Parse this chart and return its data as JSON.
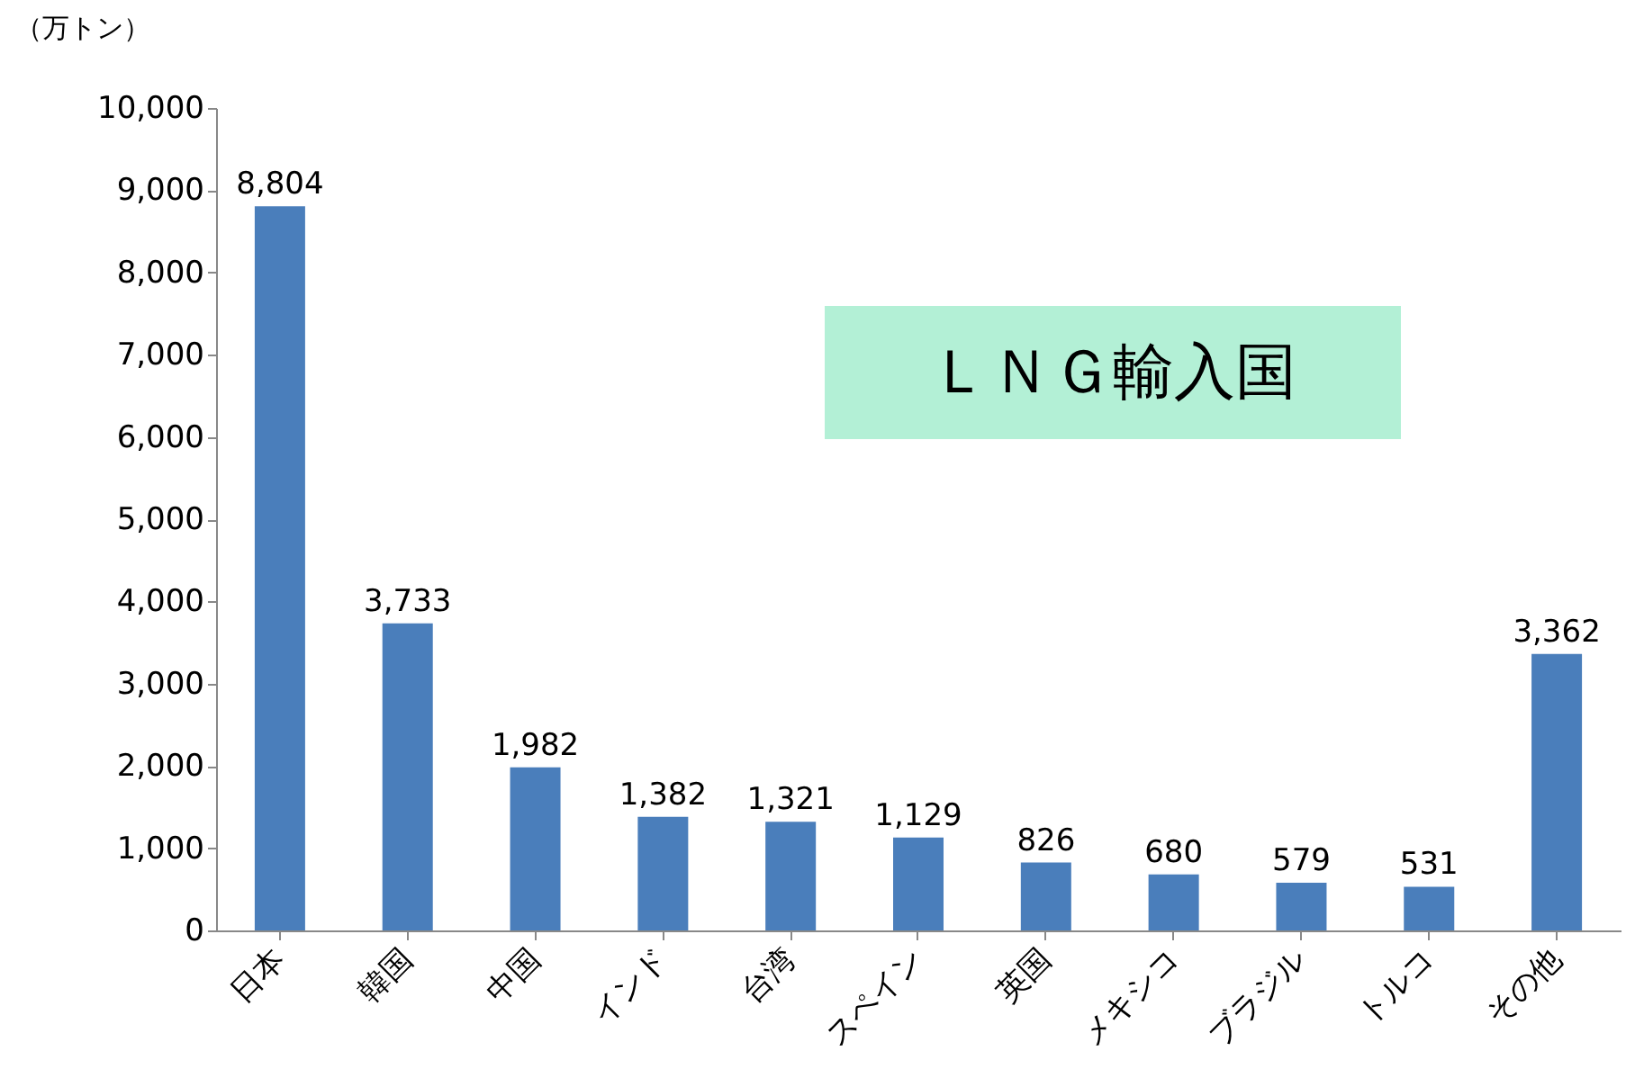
{
  "chart_data": {
    "type": "bar",
    "title": "ＬＮＧ輸入国",
    "ylabel": "（万トン）",
    "categories": [
      "日本",
      "韓国",
      "中国",
      "インド",
      "台湾",
      "スペイン",
      "英国",
      "メキシコ",
      "ブラジル",
      "トルコ",
      "その他"
    ],
    "values": [
      8804,
      3733,
      1982,
      1382,
      1321,
      1129,
      826,
      680,
      579,
      531,
      3362
    ],
    "value_labels": [
      "8,804",
      "3,733",
      "1,982",
      "1,382",
      "1,321",
      "1,129",
      "826",
      "680",
      "579",
      "531",
      "3,362"
    ],
    "color": "#4a7ebb",
    "ylim": [
      0,
      10000
    ],
    "yticks": [
      0,
      {
        "value": 1000,
        "label": "1,000"
      },
      {
        "value": 2000,
        "label": "2,000"
      },
      {
        "value": 3000,
        "label": "3,000"
      },
      {
        "value": 4000,
        "label": "4,000"
      },
      {
        "value": 5000,
        "label": "5,000"
      },
      {
        "value": 6000,
        "label": "6,000"
      },
      {
        "value": 7000,
        "label": "7,000"
      },
      {
        "value": 8000,
        "label": "8,000"
      },
      {
        "value": 9000,
        "label": "9,000"
      },
      {
        "value": 10000,
        "label": "10,000"
      }
    ],
    "grid": false
  }
}
